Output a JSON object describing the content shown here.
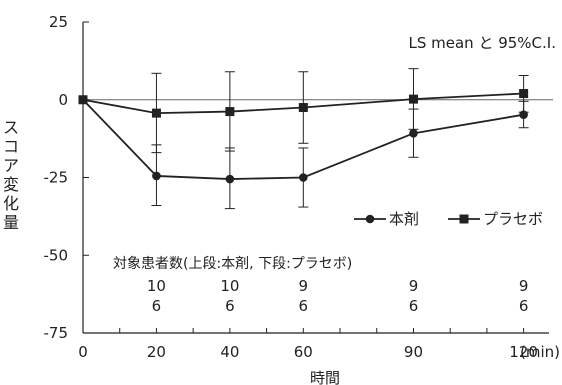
{
  "chart_data": {
    "type": "line",
    "annotation": "LS mean と 95%C.I.",
    "xlabel": "時間",
    "x_unit": "(min)",
    "ylabel": "スコア変化量",
    "x": [
      0,
      20,
      40,
      60,
      90,
      120
    ],
    "x_ticks": [
      0,
      20,
      40,
      60,
      90,
      120
    ],
    "y_ticks": [
      25,
      0,
      -25,
      -50,
      -75
    ],
    "xlim": [
      0,
      128
    ],
    "ylim": [
      -75,
      25
    ],
    "reference_line": 0,
    "legend_position": "right",
    "series": [
      {
        "name": "本剤",
        "marker": "circle",
        "values": [
          0,
          -24.5,
          -25.5,
          -25.0,
          -10.8,
          -4.8
        ],
        "ci_lower": [
          0,
          -34.0,
          -35.0,
          -34.5,
          -18.5,
          -9.0
        ],
        "ci_upper": [
          0,
          -14.5,
          -15.5,
          -15.5,
          -3.0,
          -0.5
        ]
      },
      {
        "name": "プラセボ",
        "marker": "square",
        "values": [
          0,
          -4.3,
          -3.8,
          -2.5,
          0.2,
          2.0
        ],
        "ci_lower": [
          0,
          -17.0,
          -16.5,
          -14.0,
          -9.5,
          -4.0
        ],
        "ci_upper": [
          0,
          8.5,
          9.0,
          9.0,
          10.0,
          7.8
        ]
      }
    ],
    "patient_counts": {
      "title": "対象患者数(上段:本剤, 下段:プラセボ)",
      "upper": [
        "10",
        "10",
        "9",
        "9",
        "9"
      ],
      "lower": [
        "6",
        "6",
        "6",
        "6",
        "6"
      ]
    }
  },
  "colors": {
    "line": "#222222",
    "reference": "#666666"
  }
}
